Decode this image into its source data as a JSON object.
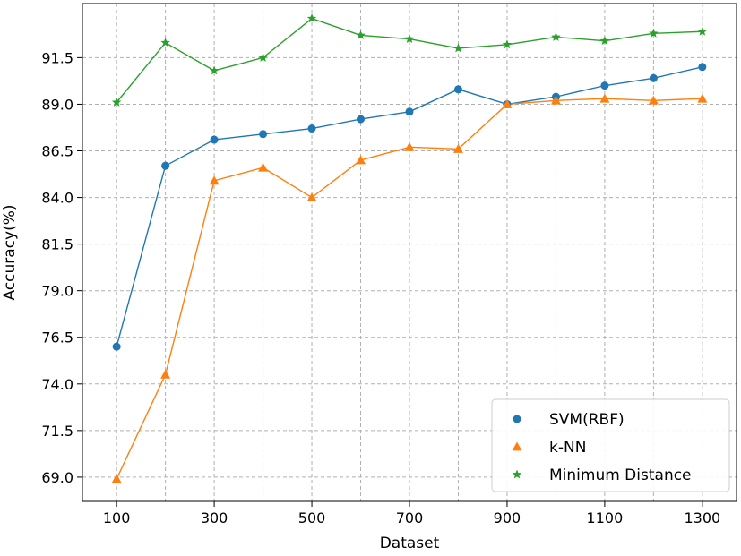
{
  "chart_data": {
    "type": "line",
    "xlabel": "Dataset",
    "ylabel": "Accuracy(%)",
    "x": [
      100,
      200,
      300,
      400,
      500,
      600,
      700,
      800,
      900,
      1000,
      1100,
      1200,
      1300
    ],
    "xticks": [
      "100",
      "300",
      "500",
      "700",
      "900",
      "1100",
      "1300"
    ],
    "yticks": [
      "69.0",
      "71.5",
      "74.0",
      "76.5",
      "79.0",
      "81.5",
      "84.0",
      "86.5",
      "89.0",
      "91.5"
    ],
    "xlim": [
      30,
      1370
    ],
    "ylim": [
      67.7,
      94.4
    ],
    "grid": true,
    "legend_position": "lower-right",
    "series": [
      {
        "name": "SVM(RBF)",
        "color": "#1f77b4",
        "marker": "circle",
        "values": [
          76.0,
          85.7,
          87.1,
          87.4,
          87.7,
          88.2,
          88.6,
          89.8,
          89.0,
          89.4,
          90.0,
          90.4,
          91.0
        ]
      },
      {
        "name": "k-NN",
        "color": "#ff7f0e",
        "marker": "triangle",
        "values": [
          68.9,
          74.5,
          84.9,
          85.6,
          84.0,
          86.0,
          86.7,
          86.6,
          89.0,
          89.2,
          89.3,
          89.2,
          89.3
        ]
      },
      {
        "name": "Minimum Distance",
        "color": "#2ca02c",
        "marker": "star",
        "values": [
          89.1,
          92.3,
          90.8,
          91.5,
          93.6,
          92.7,
          92.5,
          92.0,
          92.2,
          92.6,
          92.4,
          92.8,
          92.9
        ]
      }
    ]
  }
}
